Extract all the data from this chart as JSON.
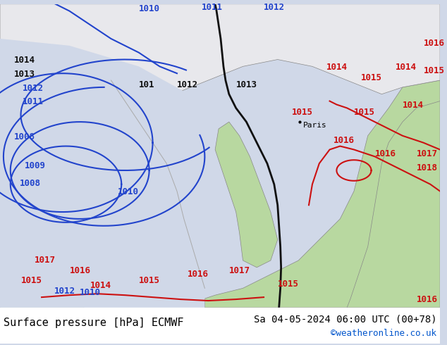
{
  "title_left": "Surface pressure [hPa] ECMWF",
  "title_right": "Sa 04-05-2024 06:00 UTC (00+78)",
  "credit": "©weatheronline.co.uk",
  "bg_color": "#d0d8e8",
  "land_color_grey": "#e8e8ec",
  "land_color_green": "#b8d8a0",
  "font_family": "monospace",
  "bottom_bar_color": "#ffffff",
  "credit_color": "#0055cc",
  "isobar_blue_color": "#2244cc",
  "isobar_black_color": "#111111",
  "isobar_red_color": "#cc1111",
  "label_fontsize": 9,
  "title_fontsize": 11
}
